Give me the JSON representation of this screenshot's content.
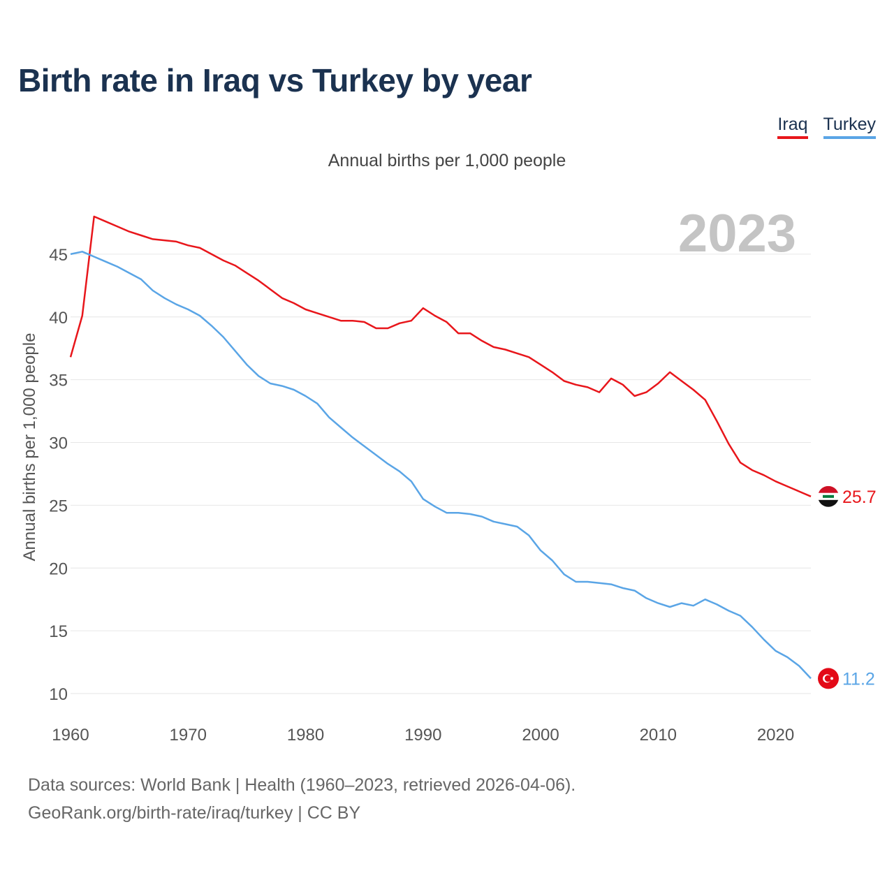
{
  "title": "Birth rate in Iraq vs Turkey by year",
  "subtitle": "Annual births per 1,000 people",
  "year_badge": "2023",
  "legend": [
    {
      "label": "Iraq",
      "color": "#e8161b"
    },
    {
      "label": "Turkey",
      "color": "#5aa5e6"
    }
  ],
  "source": {
    "line1": "Data sources: World Bank | Health (1960–2023, retrieved 2026-04-06).",
    "line2": "GeoRank.org/birth-rate/iraq/turkey | CC BY"
  },
  "chart_data": {
    "type": "line",
    "title": "Birth rate in Iraq vs Turkey by year",
    "ylabel": "Annual births per 1,000 people",
    "xlabel": "",
    "xlim": [
      1960,
      2023
    ],
    "ylim": [
      10,
      48
    ],
    "x_ticks": [
      1960,
      1970,
      1980,
      1990,
      2000,
      2010,
      2020
    ],
    "y_ticks": [
      10,
      15,
      20,
      25,
      30,
      35,
      40,
      45
    ],
    "grid": true,
    "x": [
      1960,
      1961,
      1962,
      1963,
      1964,
      1965,
      1966,
      1967,
      1968,
      1969,
      1970,
      1971,
      1972,
      1973,
      1974,
      1975,
      1976,
      1977,
      1978,
      1979,
      1980,
      1981,
      1982,
      1983,
      1984,
      1985,
      1986,
      1987,
      1988,
      1989,
      1990,
      1991,
      1992,
      1993,
      1994,
      1995,
      1996,
      1997,
      1998,
      1999,
      2000,
      2001,
      2002,
      2003,
      2004,
      2005,
      2006,
      2007,
      2008,
      2009,
      2010,
      2011,
      2012,
      2013,
      2014,
      2015,
      2016,
      2017,
      2018,
      2019,
      2020,
      2021,
      2022,
      2023
    ],
    "series": [
      {
        "name": "Iraq",
        "color": "#e8161b",
        "end_label": "25.7",
        "values": [
          36.8,
          40.1,
          48.0,
          47.6,
          47.2,
          46.8,
          46.5,
          46.2,
          46.1,
          46.0,
          45.7,
          45.5,
          45.0,
          44.5,
          44.1,
          43.5,
          42.9,
          42.2,
          41.5,
          41.1,
          40.6,
          40.3,
          40.0,
          39.7,
          39.7,
          39.6,
          39.1,
          39.1,
          39.5,
          39.7,
          40.7,
          40.1,
          39.6,
          38.7,
          38.7,
          38.1,
          37.6,
          37.4,
          37.1,
          36.8,
          36.2,
          35.6,
          34.9,
          34.6,
          34.4,
          34.0,
          35.1,
          34.6,
          33.7,
          34.0,
          34.7,
          35.6,
          34.9,
          34.2,
          33.4,
          31.7,
          29.9,
          28.4,
          27.8,
          27.4,
          26.9,
          26.5,
          26.1,
          25.7
        ]
      },
      {
        "name": "Turkey",
        "color": "#5aa5e6",
        "end_label": "11.2",
        "values": [
          45.0,
          45.2,
          44.8,
          44.4,
          44.0,
          43.5,
          43.0,
          42.1,
          41.5,
          41.0,
          40.6,
          40.1,
          39.3,
          38.4,
          37.3,
          36.2,
          35.3,
          34.7,
          34.5,
          34.2,
          33.7,
          33.1,
          32.0,
          31.2,
          30.4,
          29.7,
          29.0,
          28.3,
          27.7,
          26.9,
          25.5,
          24.9,
          24.4,
          24.4,
          24.3,
          24.1,
          23.7,
          23.5,
          23.3,
          22.6,
          21.4,
          20.6,
          19.5,
          18.9,
          18.9,
          18.8,
          18.7,
          18.4,
          18.2,
          17.6,
          17.2,
          16.9,
          17.2,
          17.0,
          17.5,
          17.1,
          16.6,
          16.2,
          15.3,
          14.3,
          13.4,
          12.9,
          12.2,
          11.2
        ]
      }
    ]
  }
}
